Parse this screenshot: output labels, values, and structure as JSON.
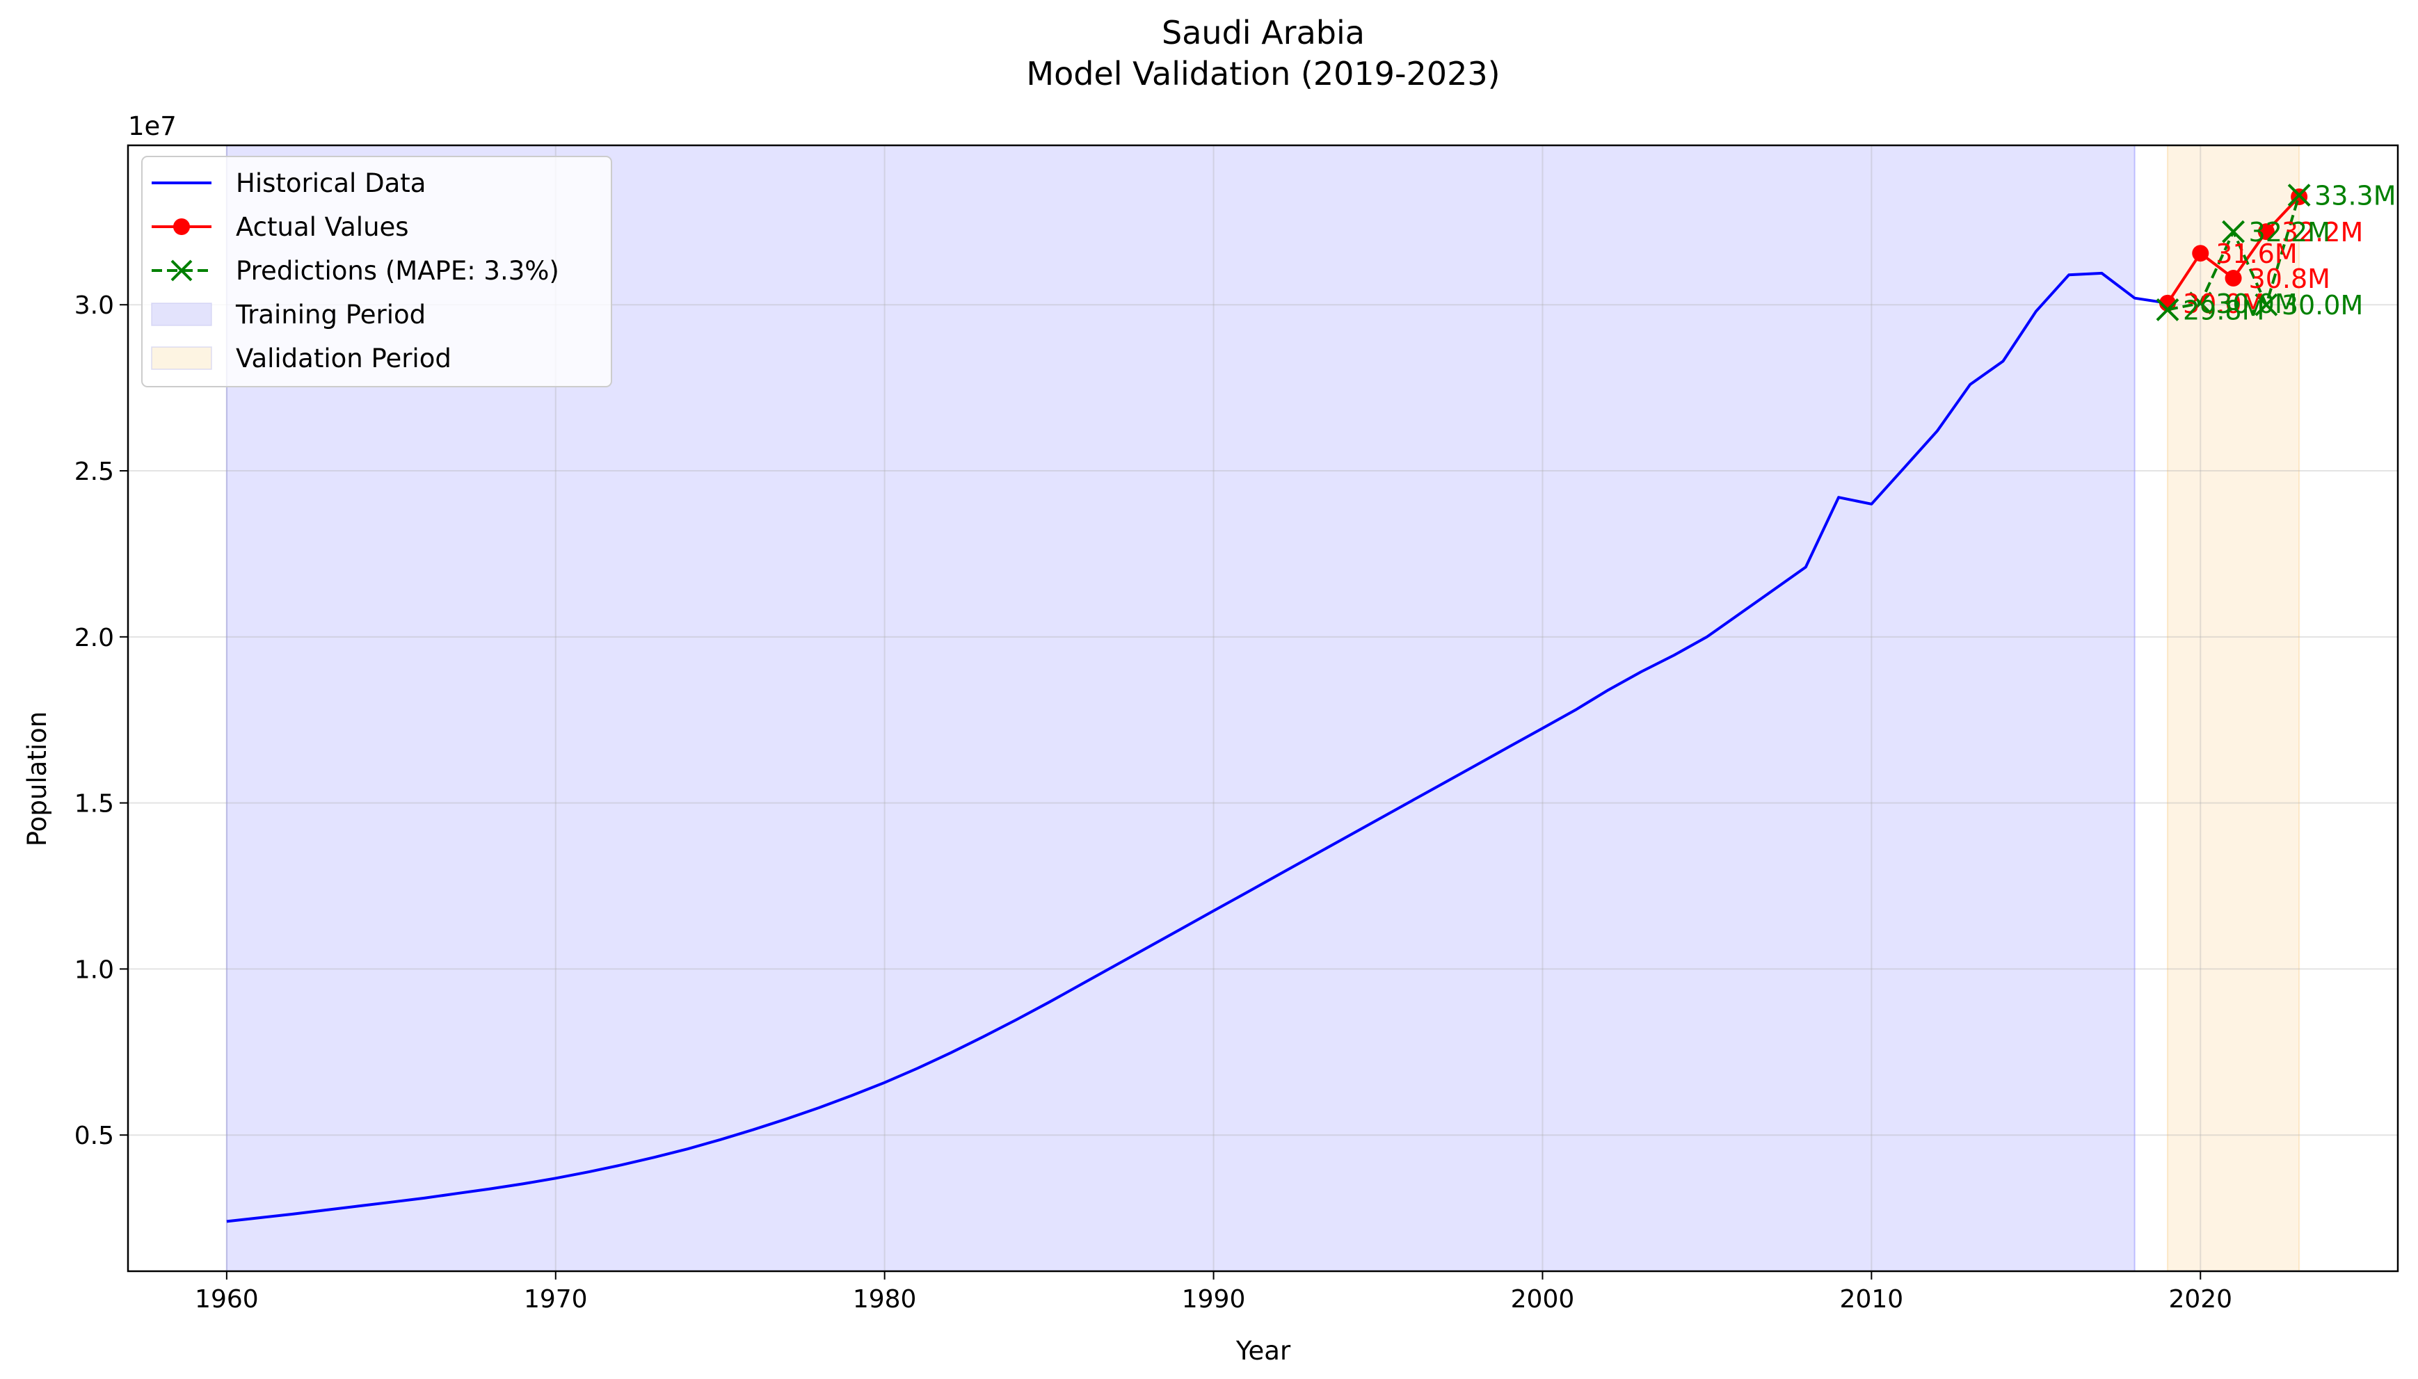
{
  "chart_data": {
    "type": "line",
    "title": "Saudi Arabia",
    "subtitle": "Model Validation (2019-2023)",
    "xlabel": "Year",
    "ylabel": "Population",
    "y_offset_label": "1e7",
    "xlim": [
      1957,
      2026
    ],
    "ylim": [
      900000,
      34800000
    ],
    "x_ticks": [
      1960,
      1970,
      1980,
      1990,
      2000,
      2010,
      2020
    ],
    "x_tick_labels": [
      "1960",
      "1970",
      "1980",
      "1990",
      "2000",
      "2010",
      "2020"
    ],
    "y_ticks": [
      5000000,
      10000000,
      15000000,
      20000000,
      25000000,
      30000000
    ],
    "y_tick_labels": [
      "0.5",
      "1.0",
      "1.5",
      "2.0",
      "2.5",
      "3.0"
    ],
    "grid": true,
    "legend_position": "upper-left",
    "legend": [
      {
        "label": "Historical Data",
        "kind": "line",
        "color": "#0000ff"
      },
      {
        "label": "Actual Values",
        "kind": "line-marker",
        "color": "#ff0000"
      },
      {
        "label": "Predictions (MAPE: 3.3%)",
        "kind": "dashed-x",
        "color": "#008000"
      },
      {
        "label": "Training Period",
        "kind": "patch",
        "color": "#e3e3fc"
      },
      {
        "label": "Validation Period",
        "kind": "patch",
        "color": "#fdf4e2"
      }
    ],
    "spans": [
      {
        "name": "Training Period",
        "x0": 1960,
        "x1": 2018,
        "color": "#0000ff",
        "opacity": 0.11
      },
      {
        "name": "Validation Period",
        "x0": 2019,
        "x1": 2023,
        "color": "#f5a623",
        "opacity": 0.13
      }
    ],
    "series": [
      {
        "name": "Historical Data",
        "color": "#0000ff",
        "style": "solid",
        "x": [
          1960,
          1961,
          1962,
          1963,
          1964,
          1965,
          1966,
          1967,
          1968,
          1969,
          1970,
          1971,
          1972,
          1973,
          1974,
          1975,
          1976,
          1977,
          1978,
          1979,
          1980,
          1981,
          1982,
          1983,
          1984,
          1985,
          1986,
          1987,
          1988,
          1989,
          1990,
          1991,
          1992,
          1993,
          1994,
          1995,
          1996,
          1997,
          1998,
          1999,
          2000,
          2001,
          2002,
          2003,
          2004,
          2005,
          2006,
          2007,
          2008,
          2009,
          2010,
          2011,
          2012,
          2013,
          2014,
          2015,
          2016,
          2017,
          2018,
          2019
        ],
        "y": [
          2400000,
          2510000,
          2620000,
          2740000,
          2860000,
          2980000,
          3100000,
          3240000,
          3380000,
          3530000,
          3700000,
          3890000,
          4100000,
          4330000,
          4580000,
          4860000,
          5160000,
          5480000,
          5820000,
          6190000,
          6580000,
          7010000,
          7470000,
          7960000,
          8470000,
          9000000,
          9550000,
          10100000,
          10650000,
          11200000,
          11750000,
          12300000,
          12850000,
          13400000,
          13950000,
          14500000,
          15050000,
          15600000,
          16150000,
          16700000,
          17250000,
          17800000,
          18400000,
          18950000,
          19450000,
          20000000,
          20700000,
          21400000,
          22100000,
          24200000,
          24000000,
          25100000,
          26200000,
          27600000,
          28300000,
          29800000,
          30900000,
          30950000,
          30200000,
          30050000
        ]
      },
      {
        "name": "Actual Values",
        "color": "#ff0000",
        "style": "solid-marker",
        "x": [
          2019,
          2020,
          2021,
          2022,
          2023
        ],
        "y": [
          30050000,
          31550000,
          30800000,
          32200000,
          33250000
        ]
      },
      {
        "name": "Predictions (MAPE: 3.3%)",
        "color": "#008000",
        "style": "dashed-x",
        "x": [
          2019,
          2020,
          2021,
          2022,
          2023
        ],
        "y": [
          29850000,
          30050000,
          32200000,
          30000000,
          33300000
        ]
      }
    ],
    "annotations": [
      {
        "series": "Actual Values",
        "x": 2019,
        "y": 30050000,
        "text": "30.0M",
        "color": "#ff0000"
      },
      {
        "series": "Actual Values",
        "x": 2020,
        "y": 31550000,
        "text": "31.6M",
        "color": "#ff0000"
      },
      {
        "series": "Actual Values",
        "x": 2021,
        "y": 30800000,
        "text": "30.8M",
        "color": "#ff0000"
      },
      {
        "series": "Actual Values",
        "x": 2022,
        "y": 32200000,
        "text": "32.2M",
        "color": "#ff0000"
      },
      {
        "series": "Predictions (MAPE: 3.3%)",
        "x": 2019,
        "y": 29850000,
        "text": "29.8M",
        "color": "#008000"
      },
      {
        "series": "Predictions (MAPE: 3.3%)",
        "x": 2020,
        "y": 30050000,
        "text": "30.0M",
        "color": "#008000"
      },
      {
        "series": "Predictions (MAPE: 3.3%)",
        "x": 2021,
        "y": 32200000,
        "text": "32.2M",
        "color": "#008000"
      },
      {
        "series": "Predictions (MAPE: 3.3%)",
        "x": 2022,
        "y": 30000000,
        "text": "30.0M",
        "color": "#008000"
      },
      {
        "series": "Predictions (MAPE: 3.3%)",
        "x": 2023,
        "y": 33300000,
        "text": "33.3M",
        "color": "#008000"
      }
    ]
  }
}
